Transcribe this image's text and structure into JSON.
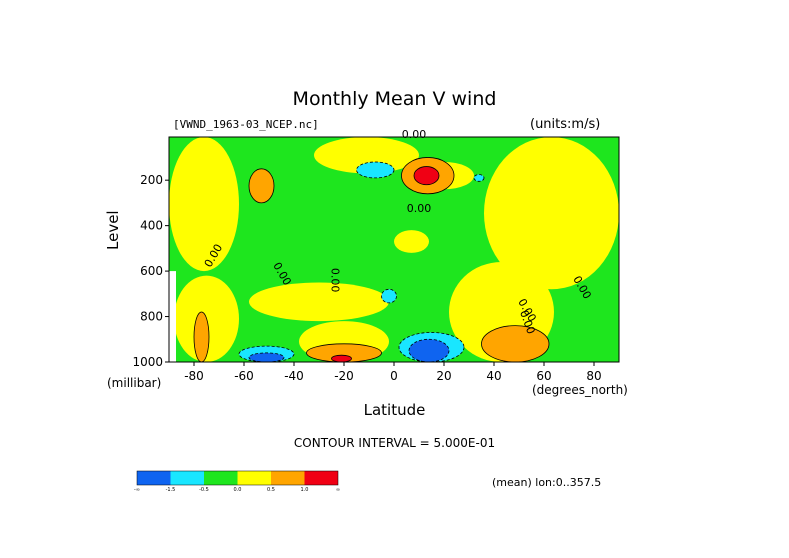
{
  "chart_data": {
    "type": "heatmap",
    "title": "Monthly Mean V wind",
    "dataset": "[VWND_1963-03_NCEP.nc]",
    "units": "(units:m/s)",
    "xlabel": "Latitude",
    "x_units": "(degrees_north)",
    "ylabel": "Level",
    "y_units": "(millibar)",
    "xlim": [
      -90,
      90
    ],
    "ylim": [
      1000,
      10
    ],
    "x_ticks": [
      -80,
      -60,
      -40,
      -20,
      0,
      20,
      40,
      60,
      80
    ],
    "y_ticks": [
      200,
      400,
      600,
      800,
      1000
    ],
    "contour_interval": "CONTOUR INTERVAL = 5.000E-01",
    "region_note": "(mean) lon:0..357.5",
    "contour_labels": [
      "0.00",
      "0.00",
      "0.00",
      "0.00",
      "0.00",
      "0.00",
      "0.00",
      "0.00"
    ],
    "colorbar": {
      "colors": [
        "#0f64f0",
        "#19e6ff",
        "#1ee61e",
        "#ffff00",
        "#ffa500",
        "#f00014"
      ],
      "labels": [
        "-∞",
        "-1.5",
        "-0.5",
        "0.0",
        "0.5",
        "1.0",
        "∞"
      ]
    },
    "regions": [
      {
        "level": "positive",
        "lat": [
          -90,
          -62
        ],
        "p": [
          10,
          600
        ]
      },
      {
        "level": "strong-positive",
        "lat": [
          -58,
          -48
        ],
        "p": [
          150,
          300
        ]
      },
      {
        "level": "positive",
        "lat": [
          -32,
          10
        ],
        "p": [
          10,
          170
        ]
      },
      {
        "level": "negative",
        "lat": [
          -15,
          0
        ],
        "p": [
          120,
          190
        ]
      },
      {
        "level": "positive",
        "lat": [
          8,
          32
        ],
        "p": [
          120,
          240
        ]
      },
      {
        "level": "strong-positive",
        "lat": [
          3,
          24
        ],
        "p": [
          100,
          260
        ]
      },
      {
        "level": "max-positive",
        "lat": [
          8,
          18
        ],
        "p": [
          140,
          220
        ]
      },
      {
        "level": "negative",
        "lat": [
          32,
          36
        ],
        "p": [
          175,
          205
        ]
      },
      {
        "level": "positive",
        "lat": [
          36,
          90
        ],
        "p": [
          10,
          680
        ]
      },
      {
        "level": "positive",
        "lat": [
          0,
          14
        ],
        "p": [
          420,
          520
        ]
      },
      {
        "level": "positive",
        "lat": [
          -88,
          -62
        ],
        "p": [
          620,
          1000
        ]
      },
      {
        "level": "strong-positive",
        "lat": [
          -80,
          -74
        ],
        "p": [
          780,
          1000
        ]
      },
      {
        "level": "positive",
        "lat": [
          -58,
          -2
        ],
        "p": [
          650,
          820
        ]
      },
      {
        "level": "positive",
        "lat": [
          -38,
          -2
        ],
        "p": [
          820,
          1000
        ]
      },
      {
        "level": "strong-positive",
        "lat": [
          -35,
          -5
        ],
        "p": [
          920,
          1000
        ]
      },
      {
        "level": "max-positive",
        "lat": [
          -25,
          -17
        ],
        "p": [
          970,
          1000
        ]
      },
      {
        "level": "negative",
        "lat": [
          -5,
          1
        ],
        "p": [
          680,
          740
        ]
      },
      {
        "level": "positive",
        "lat": [
          22,
          64
        ],
        "p": [
          560,
          1000
        ]
      },
      {
        "level": "strong-positive",
        "lat": [
          35,
          62
        ],
        "p": [
          840,
          1000
        ]
      },
      {
        "level": "negative",
        "lat": [
          -62,
          -40
        ],
        "p": [
          930,
          1000
        ]
      },
      {
        "level": "strong-negative",
        "lat": [
          -58,
          -44
        ],
        "p": [
          960,
          1000
        ]
      },
      {
        "level": "negative",
        "lat": [
          2,
          28
        ],
        "p": [
          870,
          1000
        ]
      },
      {
        "level": "strong-negative",
        "lat": [
          6,
          22
        ],
        "p": [
          900,
          1000
        ]
      }
    ]
  }
}
